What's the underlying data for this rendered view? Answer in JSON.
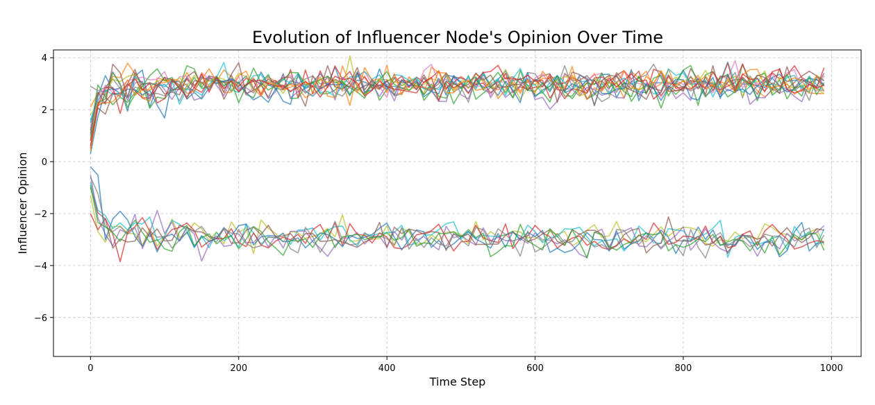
{
  "chart_data": {
    "type": "line",
    "title": "Evolution of Influencer Node's Opinion Over Time",
    "xlabel": "Time Step",
    "ylabel": "Influencer Opinion",
    "xlim": [
      -50,
      1040
    ],
    "ylim": [
      -7.5,
      4.3
    ],
    "xticks": [
      0,
      200,
      400,
      600,
      800,
      1000
    ],
    "yticks": [
      -6,
      -4,
      -2,
      0,
      2,
      4
    ],
    "ytick_labels": [
      "−6",
      "−4",
      "−2",
      "0",
      "2",
      "4"
    ],
    "grid": true,
    "x_step": 10,
    "x_start": 0,
    "x_end": 990,
    "series": [
      {
        "color": "#1f77b4",
        "start": 1.5,
        "level": 3.0,
        "noise": 0.28,
        "seed": 11
      },
      {
        "color": "#ff7f0e",
        "start": 2.1,
        "level": 3.0,
        "noise": 0.3,
        "seed": 12
      },
      {
        "color": "#2ca02c",
        "start": 1.2,
        "level": 2.9,
        "noise": 0.32,
        "seed": 13
      },
      {
        "color": "#d62728",
        "start": 0.8,
        "level": 3.1,
        "noise": 0.28,
        "seed": 14
      },
      {
        "color": "#9467bd",
        "start": 1.0,
        "level": 2.8,
        "noise": 0.3,
        "seed": 15
      },
      {
        "color": "#8c564b",
        "start": 0.5,
        "level": 3.1,
        "noise": 0.28,
        "seed": 16
      },
      {
        "color": "#e377c2",
        "start": 1.3,
        "level": 3.1,
        "noise": 0.3,
        "seed": 17
      },
      {
        "color": "#7f7f7f",
        "start": 2.9,
        "level": 2.9,
        "noise": 0.28,
        "seed": 18
      },
      {
        "color": "#bcbd22",
        "start": 1.8,
        "level": 3.0,
        "noise": 0.28,
        "seed": 19
      },
      {
        "color": "#17becf",
        "start": 1.6,
        "level": 3.0,
        "noise": 0.28,
        "seed": 20
      },
      {
        "color": "#1f77b4",
        "start": 0.3,
        "level": 2.9,
        "noise": 0.3,
        "seed": 21
      },
      {
        "color": "#2ca02c",
        "start": 0.9,
        "level": 3.0,
        "noise": 0.32,
        "seed": 22
      },
      {
        "color": "#ff7f0e",
        "start": 0.4,
        "level": 3.0,
        "noise": 0.3,
        "seed": 23
      },
      {
        "color": "#d62728",
        "start": 0.6,
        "level": 3.0,
        "noise": 0.3,
        "seed": 24
      },
      {
        "color": "#8c564b",
        "start": 1.1,
        "level": 3.0,
        "noise": 0.28,
        "seed": 25
      },
      {
        "color": "#bcbd22",
        "start": -1.3,
        "level": -2.9,
        "noise": 0.28,
        "seed": 31
      },
      {
        "color": "#17becf",
        "start": -0.8,
        "level": -2.9,
        "noise": 0.28,
        "seed": 32
      },
      {
        "color": "#9467bd",
        "start": -0.5,
        "level": -3.0,
        "noise": 0.3,
        "seed": 33
      },
      {
        "color": "#d62728",
        "start": -2.0,
        "level": -3.0,
        "noise": 0.28,
        "seed": 34
      },
      {
        "color": "#1f77b4",
        "start": -0.2,
        "level": -3.0,
        "noise": 0.28,
        "seed": 35
      },
      {
        "color": "#8c564b",
        "start": -1.0,
        "level": -2.9,
        "noise": 0.28,
        "seed": 36
      },
      {
        "color": "#7f7f7f",
        "start": -0.6,
        "level": -3.0,
        "noise": 0.28,
        "seed": 37
      },
      {
        "color": "#2ca02c",
        "start": -0.9,
        "level": -3.0,
        "noise": 0.28,
        "seed": 38
      }
    ]
  }
}
